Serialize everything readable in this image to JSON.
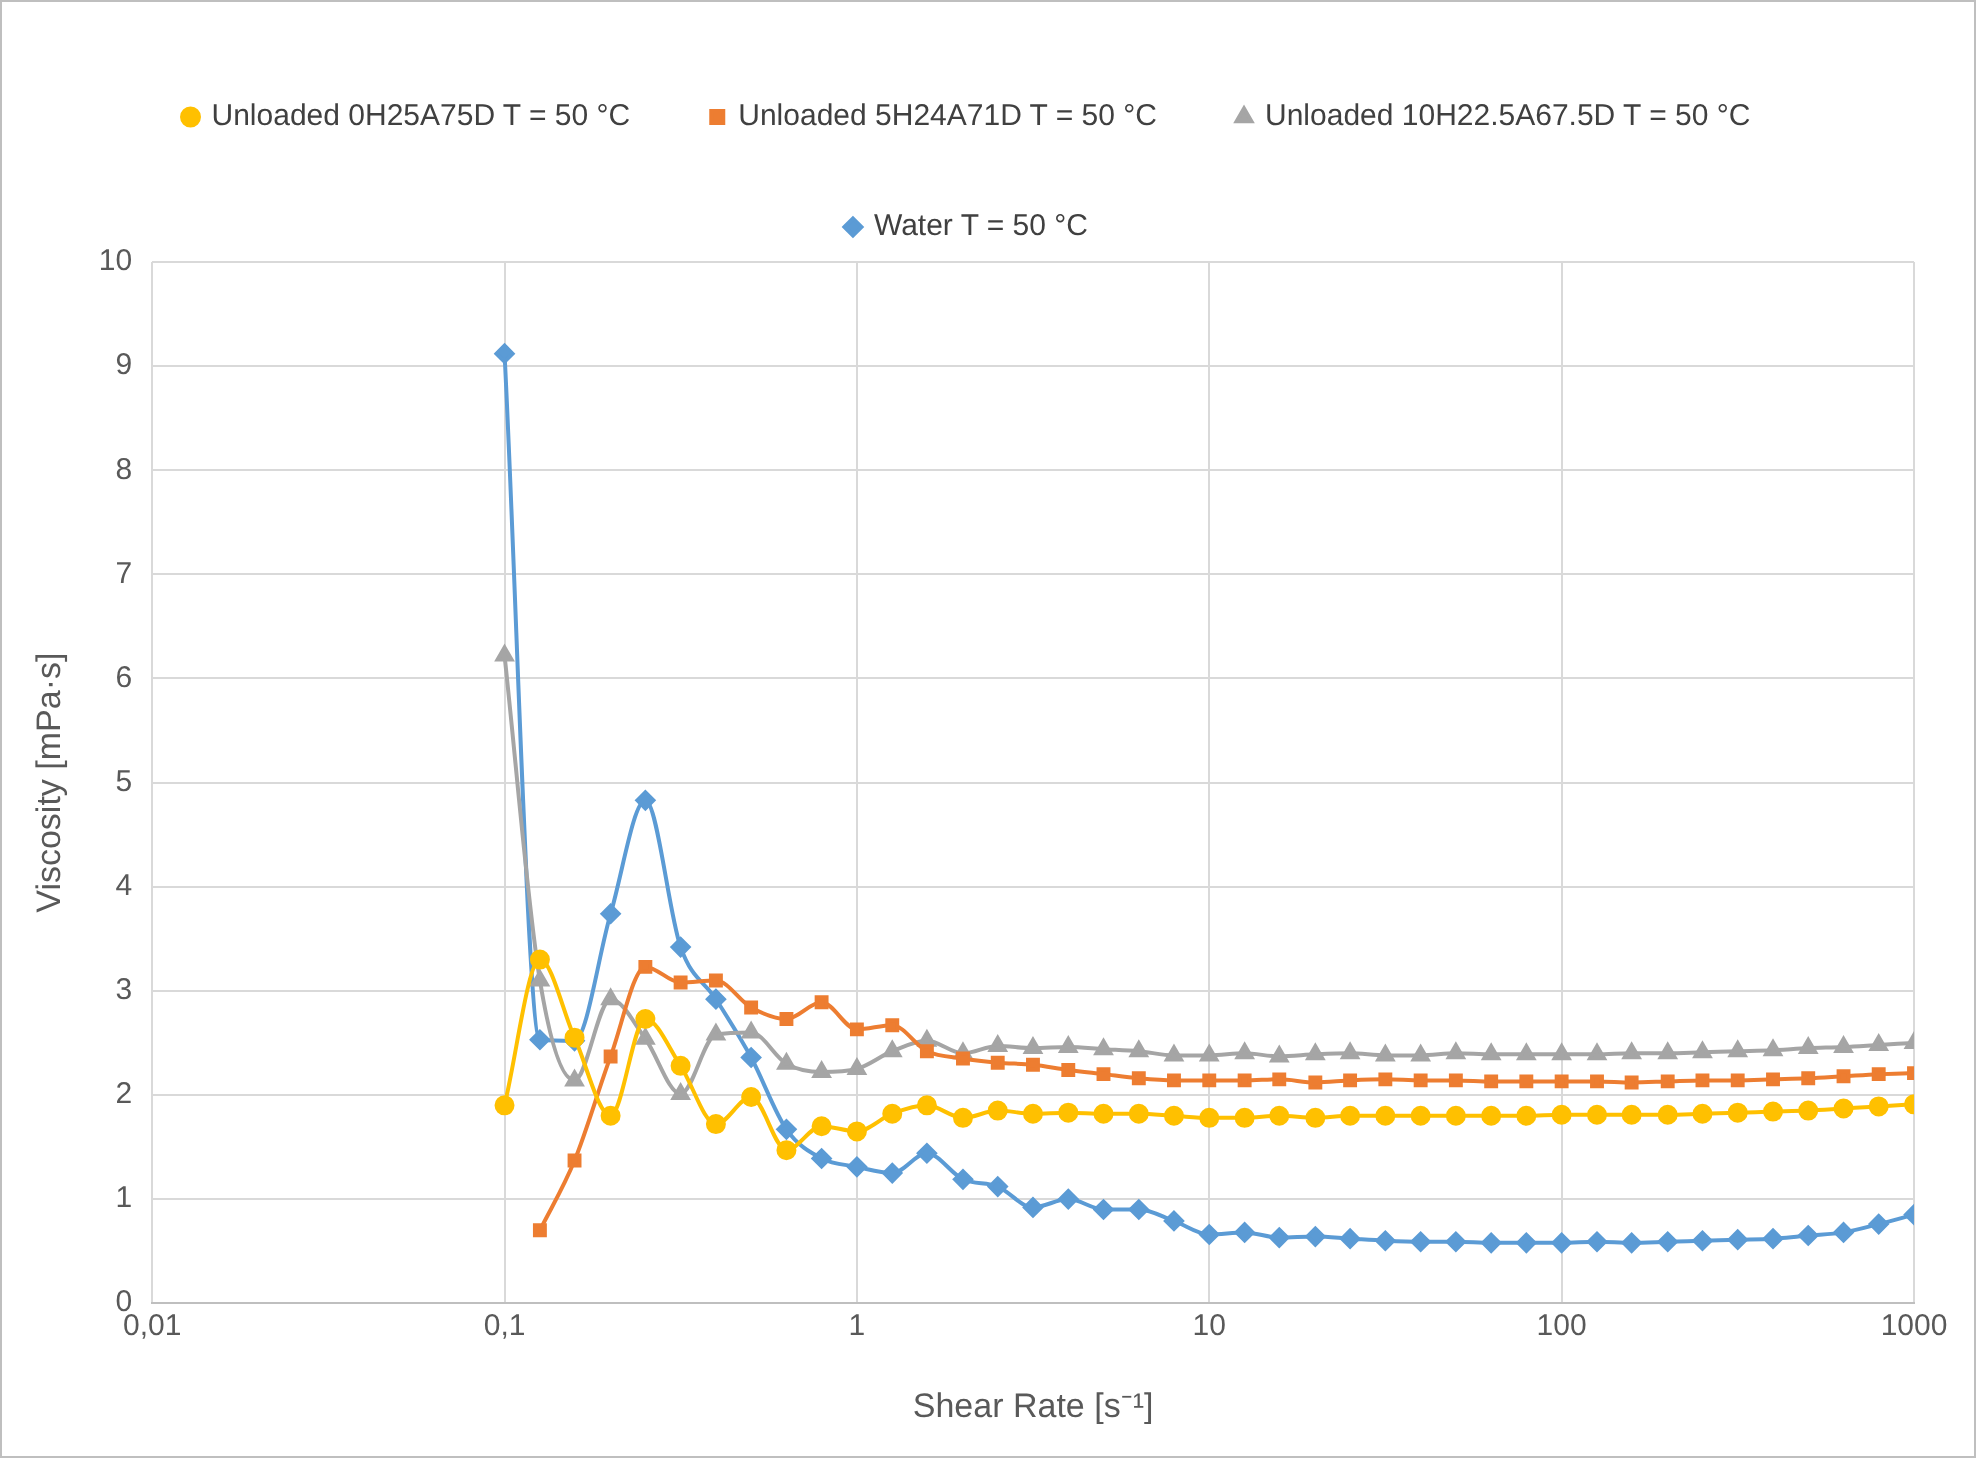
{
  "chart_data": {
    "type": "line",
    "xlabel": "Shear Rate [s⁻¹]",
    "ylabel": "Viscosity [mPa·s]",
    "x": [
      0.1,
      0.126,
      0.158,
      0.2,
      0.251,
      0.316,
      0.398,
      0.501,
      0.631,
      0.794,
      1,
      1.26,
      1.58,
      2,
      2.51,
      3.16,
      3.98,
      5.01,
      6.31,
      7.94,
      10,
      12.6,
      15.8,
      20,
      25.1,
      31.6,
      39.8,
      50.1,
      63.1,
      79.4,
      100,
      126,
      158,
      200,
      251,
      316,
      398,
      501,
      631,
      794,
      1000
    ],
    "series": [
      {
        "name": "Unloaded 0H25A75D T = 50 °C",
        "color": "#ffc000",
        "marker": "circle",
        "values": [
          1.9,
          3.3,
          2.55,
          1.8,
          2.73,
          2.28,
          1.72,
          1.98,
          1.47,
          1.7,
          1.65,
          1.82,
          1.9,
          1.78,
          1.85,
          1.82,
          1.83,
          1.82,
          1.82,
          1.8,
          1.78,
          1.78,
          1.8,
          1.78,
          1.8,
          1.8,
          1.8,
          1.8,
          1.8,
          1.8,
          1.81,
          1.81,
          1.81,
          1.81,
          1.82,
          1.83,
          1.84,
          1.85,
          1.87,
          1.89,
          1.91
        ]
      },
      {
        "name": "Unloaded 5H24A71D T = 50 °C",
        "color": "#ed7d31",
        "marker": "square",
        "values": [
          null,
          0.7,
          1.37,
          2.37,
          3.23,
          3.08,
          3.1,
          2.84,
          2.73,
          2.89,
          2.63,
          2.67,
          2.42,
          2.35,
          2.31,
          2.29,
          2.24,
          2.2,
          2.16,
          2.14,
          2.14,
          2.14,
          2.15,
          2.12,
          2.14,
          2.15,
          2.14,
          2.14,
          2.13,
          2.13,
          2.13,
          2.13,
          2.12,
          2.13,
          2.14,
          2.14,
          2.15,
          2.16,
          2.18,
          2.2,
          2.21
        ]
      },
      {
        "name": "Unloaded 10H22.5A67.5D T = 50 °C",
        "color": "#a5a5a5",
        "marker": "triangle",
        "values": [
          6.22,
          3.1,
          2.14,
          2.92,
          2.54,
          2.01,
          2.58,
          2.6,
          2.3,
          2.22,
          2.25,
          2.42,
          2.52,
          2.4,
          2.47,
          2.45,
          2.46,
          2.44,
          2.42,
          2.38,
          2.38,
          2.4,
          2.37,
          2.39,
          2.4,
          2.38,
          2.38,
          2.4,
          2.39,
          2.39,
          2.39,
          2.39,
          2.4,
          2.4,
          2.41,
          2.42,
          2.43,
          2.45,
          2.46,
          2.48,
          2.5
        ]
      },
      {
        "name": "Water T = 50 °C",
        "color": "#5b9bd5",
        "marker": "diamond",
        "values": [
          9.12,
          2.53,
          2.52,
          3.74,
          4.83,
          3.42,
          2.92,
          2.36,
          1.67,
          1.39,
          1.31,
          1.25,
          1.44,
          1.19,
          1.12,
          0.92,
          1.0,
          0.9,
          0.9,
          0.79,
          0.66,
          0.68,
          0.63,
          0.64,
          0.62,
          0.6,
          0.59,
          0.59,
          0.58,
          0.58,
          0.58,
          0.59,
          0.58,
          0.59,
          0.6,
          0.61,
          0.62,
          0.65,
          0.68,
          0.76,
          0.85
        ]
      }
    ],
    "log": "x",
    "xlim": [
      0.01,
      1000
    ],
    "xticks": [
      {
        "value": 0.01,
        "label": "0,01"
      },
      {
        "value": 0.1,
        "label": "0,1"
      },
      1,
      10,
      100,
      1000
    ],
    "ylim": [
      0,
      10
    ],
    "yticks": [
      0,
      1,
      2,
      3,
      4,
      5,
      6,
      7,
      8,
      9,
      10
    ],
    "grid": true,
    "legend": "top"
  }
}
